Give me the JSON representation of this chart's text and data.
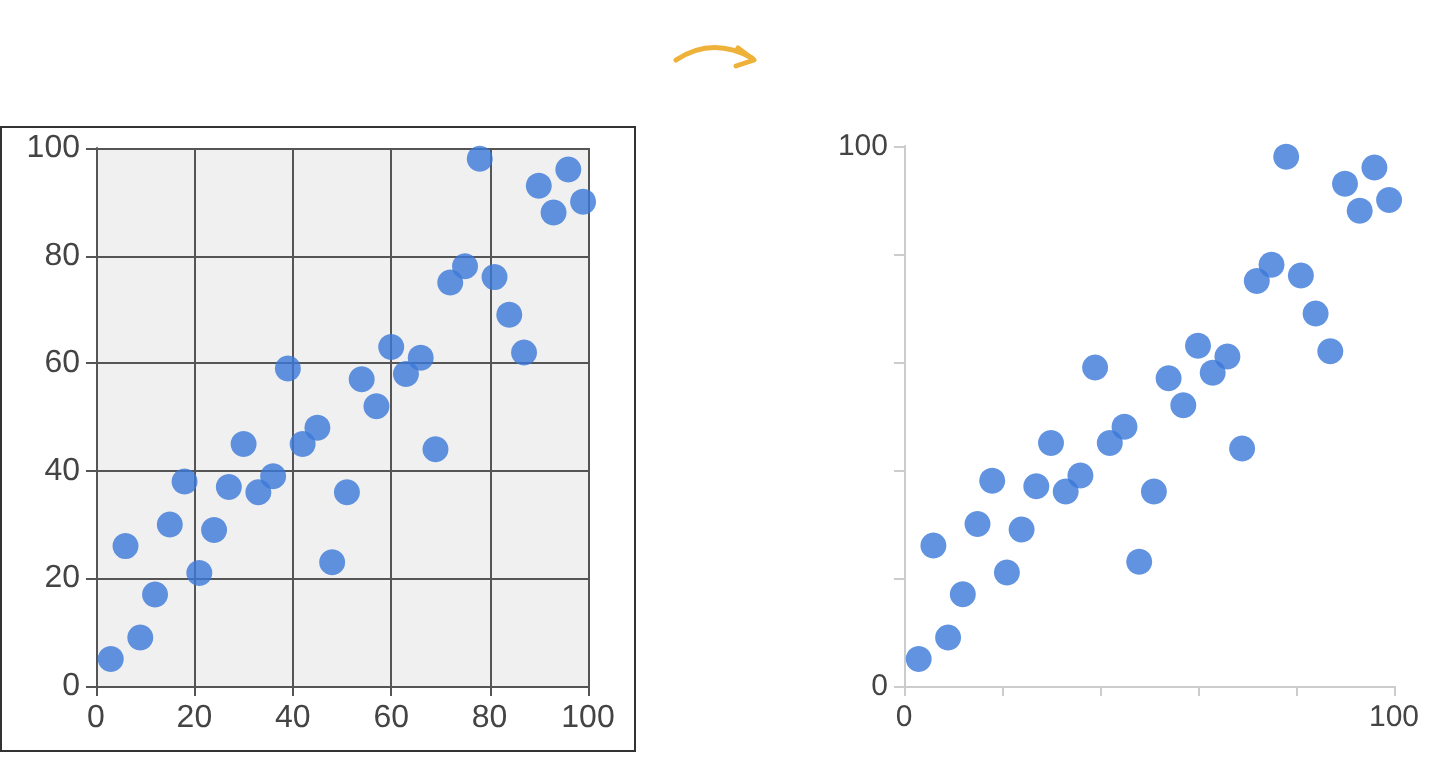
{
  "chart_data": [
    {
      "type": "scatter",
      "x": [
        3,
        6,
        9,
        12,
        15,
        18,
        21,
        24,
        27,
        30,
        33,
        36,
        39,
        42,
        45,
        48,
        51,
        54,
        57,
        60,
        63,
        66,
        69,
        72,
        75,
        78,
        81,
        84,
        87,
        90,
        93,
        96,
        99
      ],
      "values": [
        5,
        26,
        9,
        17,
        30,
        38,
        21,
        29,
        37,
        45,
        36,
        39,
        59,
        45,
        48,
        23,
        36,
        57,
        52,
        63,
        58,
        61,
        44,
        75,
        78,
        98,
        76,
        69,
        62,
        93,
        88,
        96,
        90
      ],
      "color": "#3b78d8",
      "marker": "circle",
      "xlim": [
        0,
        100
      ],
      "ylim": [
        0,
        100
      ],
      "xticks": [
        0,
        20,
        40,
        60,
        80,
        100
      ],
      "yticks": [
        0,
        20,
        40,
        60,
        80,
        100
      ],
      "grid": true
    },
    {
      "type": "scatter",
      "x": [
        3,
        6,
        9,
        12,
        15,
        18,
        21,
        24,
        27,
        30,
        33,
        36,
        39,
        42,
        45,
        48,
        51,
        54,
        57,
        60,
        63,
        66,
        69,
        72,
        75,
        78,
        81,
        84,
        87,
        90,
        93,
        96,
        99
      ],
      "values": [
        5,
        26,
        9,
        17,
        30,
        38,
        21,
        29,
        37,
        45,
        36,
        39,
        59,
        45,
        48,
        23,
        36,
        57,
        52,
        63,
        58,
        61,
        44,
        75,
        78,
        98,
        76,
        69,
        62,
        93,
        88,
        96,
        90
      ],
      "color": "#3b78d8",
      "marker": "circle",
      "xlim": [
        0,
        100
      ],
      "ylim": [
        0,
        100
      ],
      "xticks": [
        0,
        {
          "value": 20,
          "label": null
        },
        {
          "value": 40,
          "label": null
        },
        {
          "value": 60,
          "label": null
        },
        {
          "value": 80,
          "label": null
        },
        100
      ],
      "yticks": [
        0,
        {
          "value": 20,
          "label": null
        },
        {
          "value": 40,
          "label": null
        },
        {
          "value": 60,
          "label": null
        },
        {
          "value": 80,
          "label": null
        },
        100
      ],
      "grid": false
    }
  ]
}
